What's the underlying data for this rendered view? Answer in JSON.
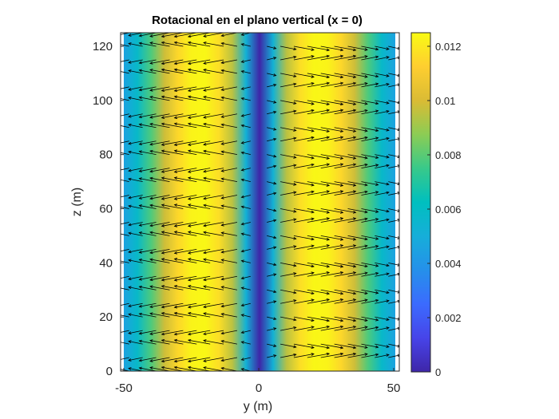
{
  "chart_data": {
    "type": "heatmap",
    "subtype": "pseudocolor field with quiver arrows",
    "title": "Rotacional en el plano vertical (x = 0)",
    "xlabel": "y (m)",
    "ylabel": "z (m)",
    "xlim": [
      -50,
      50
    ],
    "ylim": [
      0,
      125
    ],
    "xticks": [
      -50,
      0,
      50
    ],
    "xtick_labels": [
      "-50",
      "0",
      "50"
    ],
    "yticks": [
      0,
      20,
      40,
      60,
      80,
      100,
      120
    ],
    "ytick_labels": [
      "0",
      "20",
      "40",
      "60",
      "80",
      "100",
      "120"
    ],
    "colormap": "parula",
    "colorbar": {
      "range": [
        0,
        0.0125
      ],
      "ticks": [
        0,
        0.002,
        0.004,
        0.006,
        0.008,
        0.01,
        0.012
      ],
      "tick_labels": [
        "0",
        "0.002",
        "0.004",
        "0.006",
        "0.008",
        "0.01",
        "0.012"
      ],
      "placement": "right"
    },
    "field_profile": {
      "description": "magnitude depends on y only; zero at y=0, peaks near |y|=25",
      "y": [
        -50,
        -45,
        -40,
        -35,
        -30,
        -25,
        -20,
        -15,
        -10,
        -5,
        0,
        5,
        10,
        15,
        20,
        25,
        30,
        35,
        40,
        45,
        50
      ],
      "value": [
        0.0045,
        0.0058,
        0.0078,
        0.0098,
        0.0115,
        0.0123,
        0.0124,
        0.0117,
        0.0095,
        0.0052,
        0.0,
        0.0052,
        0.0095,
        0.0117,
        0.0124,
        0.0123,
        0.0115,
        0.0098,
        0.0078,
        0.0058,
        0.0045
      ]
    },
    "quiver": {
      "y_positions": [
        -48,
        -43,
        -38,
        -33,
        -28,
        -23,
        -18,
        -13,
        -8,
        -3,
        3,
        8,
        13,
        18,
        23,
        28,
        33,
        38,
        43,
        48
      ],
      "z_positions": [
        0,
        5,
        10,
        15,
        20,
        25,
        30,
        35,
        40,
        45,
        50,
        55,
        60,
        65,
        70,
        75,
        80,
        85,
        90,
        95,
        100,
        105,
        110,
        115,
        120,
        125
      ],
      "direction_left_half": "pointing toward -y (left)",
      "direction_right_half": "pointing toward +y (right)"
    }
  }
}
